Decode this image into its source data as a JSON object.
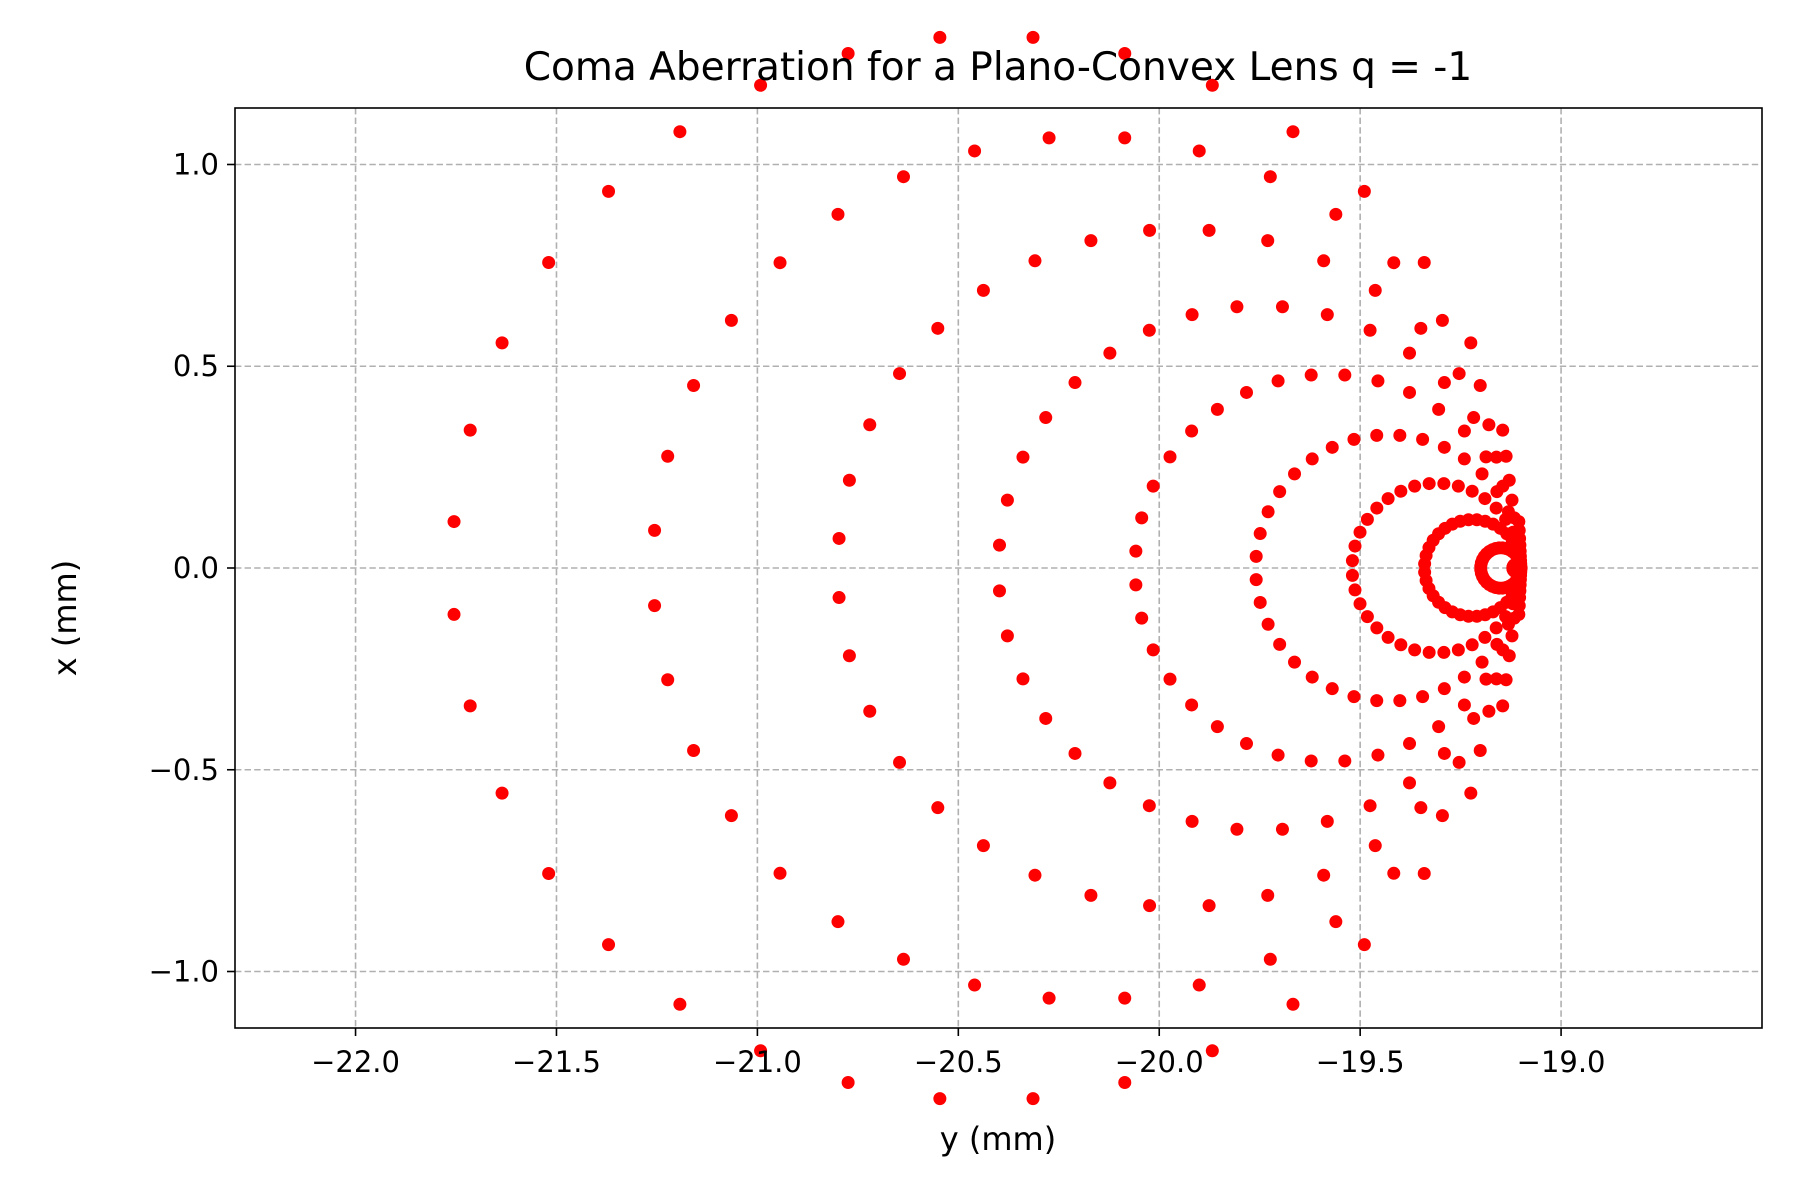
{
  "chart_data": {
    "type": "scatter",
    "title": "Coma Aberration for a Plano-Convex Lens q = -1",
    "xlabel": "y (mm)",
    "ylabel": "x (mm)",
    "xlim": [
      -22.3,
      -18.5
    ],
    "ylim": [
      -1.14,
      1.14
    ],
    "xticks": [
      -22.0,
      -21.5,
      -21.0,
      -20.5,
      -20.0,
      -19.5,
      -19.0
    ],
    "yticks": [
      -1.0,
      -0.5,
      0.0,
      0.5,
      1.0
    ],
    "xtick_labels": [
      "−22.0",
      "−21.5",
      "−21.0",
      "−20.5",
      "−20.0",
      "−19.5",
      "−19.0"
    ],
    "ytick_labels": [
      "−1.0",
      "−0.5",
      "0.0",
      "0.5",
      "1.0"
    ],
    "grid": true,
    "legend": "none",
    "marker_color": "#ff0000",
    "coma_model": {
      "chief_y": -19.1,
      "radii": [
        0.1,
        0.2,
        0.3,
        0.4,
        0.5,
        0.6,
        0.7,
        0.8,
        0.9,
        1.0
      ],
      "points_per_ring": 36
    },
    "rings": [
      {
        "radius": 1.0,
        "center_y": -20.43,
        "half_width_x": 1.32
      },
      {
        "radius": 0.9,
        "center_y": -20.18,
        "half_width_x": 1.07
      },
      {
        "radius": 0.8,
        "center_y": -19.95,
        "half_width_x": 0.84
      },
      {
        "radius": 0.7,
        "center_y": -19.75,
        "half_width_x": 0.65
      },
      {
        "radius": 0.6,
        "center_y": -19.58,
        "half_width_x": 0.48
      },
      {
        "radius": 0.5,
        "center_y": -19.43,
        "half_width_x": 0.33
      },
      {
        "radius": 0.4,
        "center_y": -19.31,
        "half_width_x": 0.21
      },
      {
        "radius": 0.3,
        "center_y": -19.22,
        "half_width_x": 0.12
      },
      {
        "radius": 0.2,
        "center_y": -19.15,
        "half_width_x": 0.05
      },
      {
        "radius": 0.1,
        "center_y": -19.11,
        "half_width_x": 0.01
      }
    ]
  }
}
